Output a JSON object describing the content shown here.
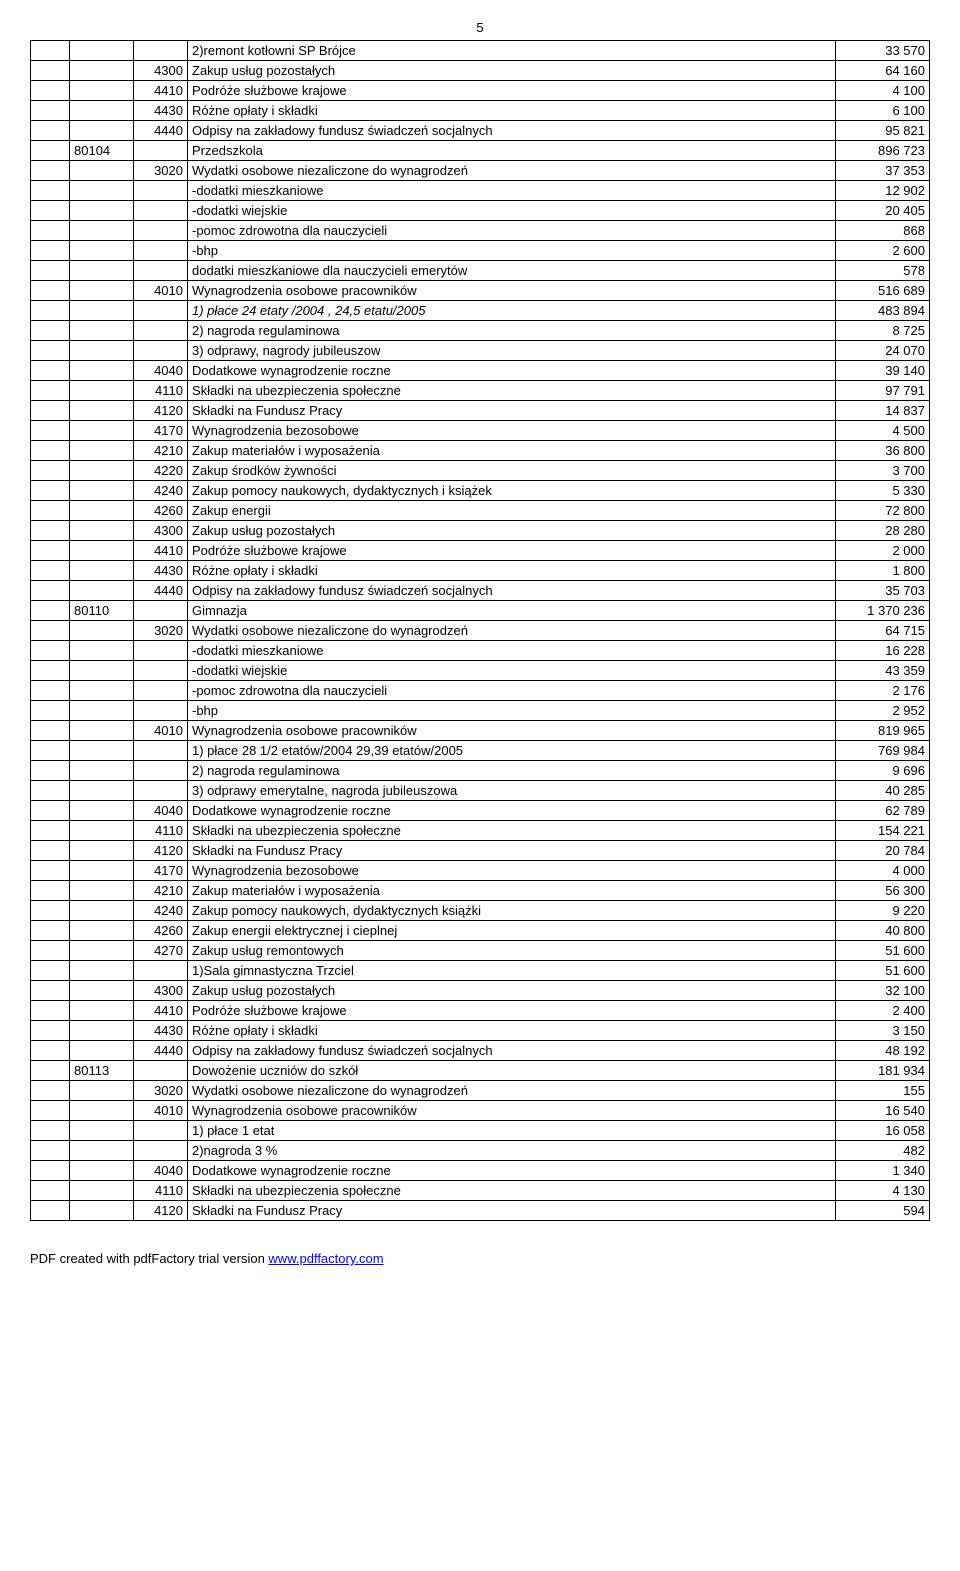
{
  "page_number": "5",
  "footer_text_prefix": "PDF created with pdfFactory trial version ",
  "footer_link_text": "www.pdffactory.com",
  "rows": [
    {
      "a": "",
      "b": "",
      "code": "",
      "desc": "  2)remont kotłowni  SP Brójce",
      "val": "33 570"
    },
    {
      "a": "",
      "b": "",
      "code": "4300",
      "desc": "Zakup usług pozostałych",
      "val": "64 160"
    },
    {
      "a": "",
      "b": "",
      "code": "4410",
      "desc": "Podróże służbowe krajowe",
      "val": "4 100"
    },
    {
      "a": "",
      "b": "",
      "code": "4430",
      "desc": "Różne opłaty i składki",
      "val": "6 100"
    },
    {
      "a": "",
      "b": "",
      "code": "4440",
      "desc": "Odpisy na zakładowy fundusz świadczeń socjalnych",
      "val": "95 821"
    },
    {
      "a": "",
      "b": "80104",
      "code": "",
      "desc": "Przedszkola",
      "val": "896 723"
    },
    {
      "a": "",
      "b": "",
      "code": "3020",
      "desc": "Wydatki osobowe niezaliczone do wynagrodzeń",
      "val": "37 353"
    },
    {
      "a": "",
      "b": "",
      "code": "",
      "desc": " -dodatki mieszkaniowe",
      "val": "12 902"
    },
    {
      "a": "",
      "b": "",
      "code": "",
      "desc": " -dodatki wiejskie",
      "val": "20 405"
    },
    {
      "a": "",
      "b": "",
      "code": "",
      "desc": " -pomoc zdrowotna dla nauczycieli",
      "val": "868"
    },
    {
      "a": "",
      "b": "",
      "code": "",
      "desc": " -bhp",
      "val": "2 600"
    },
    {
      "a": "",
      "b": "",
      "code": "",
      "desc": " dodatki mieszkaniowe dla nauczycieli emerytów",
      "val": "578"
    },
    {
      "a": "",
      "b": "",
      "code": "4010",
      "desc": "Wynagrodzenia osobowe pracowników",
      "val": "516 689"
    },
    {
      "a": "",
      "b": "",
      "code": "",
      "desc": "1) płace   24 etaty /2004 ,  24,5 etatu/2005",
      "val": "483 894",
      "italic": true
    },
    {
      "a": "",
      "b": "",
      "code": "",
      "desc": "2) nagroda regulaminowa",
      "val": "8 725"
    },
    {
      "a": "",
      "b": "",
      "code": "",
      "desc": "3) odprawy, nagrody jubileuszow",
      "val": "24 070"
    },
    {
      "a": "",
      "b": "",
      "code": "4040",
      "desc": "Dodatkowe wynagrodzenie roczne",
      "val": "39 140"
    },
    {
      "a": "",
      "b": "",
      "code": "4110",
      "desc": "Składki na ubezpieczenia społeczne",
      "val": "97 791"
    },
    {
      "a": "",
      "b": "",
      "code": "4120",
      "desc": "Składki na Fundusz Pracy",
      "val": "14 837"
    },
    {
      "a": "",
      "b": "",
      "code": "4170",
      "desc": "Wynagrodzenia bezosobowe",
      "val": "4 500"
    },
    {
      "a": "",
      "b": "",
      "code": "4210",
      "desc": "Zakup materiałów i wyposażenia",
      "val": "36 800"
    },
    {
      "a": "",
      "b": "",
      "code": "4220",
      "desc": "Zakup środków żywności",
      "val": "3 700"
    },
    {
      "a": "",
      "b": "",
      "code": "4240",
      "desc": "Zakup pomocy naukowych, dydaktycznych i książek",
      "val": "5 330"
    },
    {
      "a": "",
      "b": "",
      "code": "4260",
      "desc": "Zakup energii",
      "val": "72 800"
    },
    {
      "a": "",
      "b": "",
      "code": "4300",
      "desc": "Zakup usług pozostałych",
      "val": "28 280"
    },
    {
      "a": "",
      "b": "",
      "code": "4410",
      "desc": "Podróże służbowe krajowe",
      "val": "2 000"
    },
    {
      "a": "",
      "b": "",
      "code": "4430",
      "desc": "Różne opłaty i składki",
      "val": "1 800"
    },
    {
      "a": "",
      "b": "",
      "code": "4440",
      "desc": "Odpisy na zakładowy fundusz świadczeń socjalnych",
      "val": "35 703"
    },
    {
      "a": "",
      "b": "80110",
      "code": "",
      "desc": "Gimnazja",
      "val": "1 370 236"
    },
    {
      "a": "",
      "b": "",
      "code": "3020",
      "desc": "Wydatki osobowe niezaliczone do wynagrodzeń",
      "val": "64 715"
    },
    {
      "a": "",
      "b": "",
      "code": "",
      "desc": " -dodatki mieszkaniowe",
      "val": "16 228"
    },
    {
      "a": "",
      "b": "",
      "code": "",
      "desc": " -dodatki wiejskie",
      "val": "43 359"
    },
    {
      "a": "",
      "b": "",
      "code": "",
      "desc": " -pomoc zdrowotna dla nauczycieli",
      "val": "2 176"
    },
    {
      "a": "",
      "b": "",
      "code": "",
      "desc": " -bhp",
      "val": "2 952"
    },
    {
      "a": "",
      "b": "",
      "code": "4010",
      "desc": "Wynagrodzenia osobowe pracowników",
      "val": "819 965"
    },
    {
      "a": "",
      "b": "",
      "code": "",
      "desc": "1) płace   28 1/2   etatów/2004  29,39 etatów/2005",
      "val": "769 984"
    },
    {
      "a": "",
      "b": "",
      "code": "",
      "desc": "2) nagroda regulaminowa",
      "val": "9 696"
    },
    {
      "a": "",
      "b": "",
      "code": "",
      "desc": "3) odprawy emerytalne, nagroda jubileuszowa",
      "val": "40 285"
    },
    {
      "a": "",
      "b": "",
      "code": "4040",
      "desc": "Dodatkowe wynagrodzenie roczne",
      "val": "62 789"
    },
    {
      "a": "",
      "b": "",
      "code": "4110",
      "desc": "Składki na ubezpieczenia społeczne",
      "val": "154 221"
    },
    {
      "a": "",
      "b": "",
      "code": "4120",
      "desc": "Składki na Fundusz Pracy",
      "val": "20 784"
    },
    {
      "a": "",
      "b": "",
      "code": "4170",
      "desc": "Wynagrodzenia bezosobowe",
      "val": "4 000"
    },
    {
      "a": "",
      "b": "",
      "code": "4210",
      "desc": "Zakup materiałów i wyposażenia",
      "val": "56 300"
    },
    {
      "a": "",
      "b": "",
      "code": "4240",
      "desc": "Zakup pomocy naukowych, dydaktycznych książki",
      "val": "9 220"
    },
    {
      "a": "",
      "b": "",
      "code": "4260",
      "desc": "Zakup energii elektrycznej i cieplnej",
      "val": "40 800"
    },
    {
      "a": "",
      "b": "",
      "code": "4270",
      "desc": "Zakup usług remontowych",
      "val": "51 600"
    },
    {
      "a": "",
      "b": "",
      "code": "",
      "desc": "1)Sala gimnastyczna Trzciel",
      "val": "51 600"
    },
    {
      "a": "",
      "b": "",
      "code": "4300",
      "desc": "Zakup usług pozostałych",
      "val": "32 100"
    },
    {
      "a": "",
      "b": "",
      "code": "4410",
      "desc": "Podróże służbowe krajowe",
      "val": "2 400"
    },
    {
      "a": "",
      "b": "",
      "code": "4430",
      "desc": "Różne opłaty i składki",
      "val": "3 150"
    },
    {
      "a": "",
      "b": "",
      "code": "4440",
      "desc": "Odpisy na zakładowy fundusz świadczeń socjalnych",
      "val": "48 192"
    },
    {
      "a": "",
      "b": "80113",
      "code": "",
      "desc": "Dowożenie uczniów do szkół",
      "val": "181 934"
    },
    {
      "a": "",
      "b": "",
      "code": "3020",
      "desc": "Wydatki osobowe niezaliczone do wynagrodzeń",
      "val": "155"
    },
    {
      "a": "",
      "b": "",
      "code": "4010",
      "desc": "Wynagrodzenia osobowe pracowników",
      "val": "16 540"
    },
    {
      "a": "",
      "b": "",
      "code": "",
      "desc": "1) płace 1 etat",
      "val": "16 058"
    },
    {
      "a": "",
      "b": "",
      "code": "",
      "desc": "2)nagroda 3 %",
      "val": "482"
    },
    {
      "a": "",
      "b": "",
      "code": "4040",
      "desc": "Dodatkowe wynagrodzenie roczne",
      "val": "1 340"
    },
    {
      "a": "",
      "b": "",
      "code": "4110",
      "desc": "Składki na ubezpieczenia społeczne",
      "val": "4 130"
    },
    {
      "a": "",
      "b": "",
      "code": "4120",
      "desc": "Składki na Fundusz Pracy",
      "val": "594"
    }
  ]
}
